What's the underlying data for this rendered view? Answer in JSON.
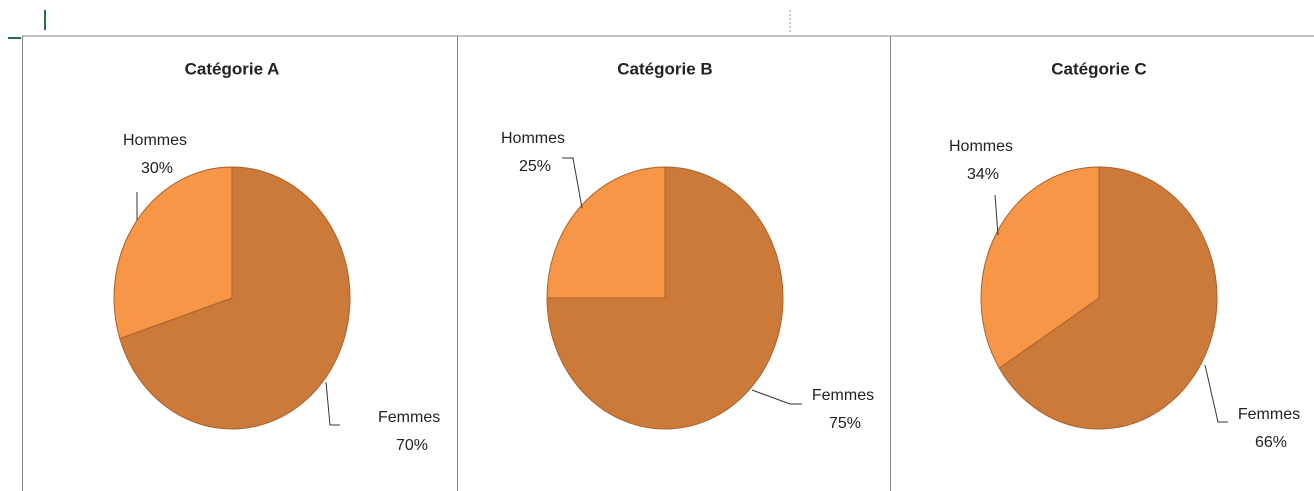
{
  "chart_data": [
    {
      "type": "pie",
      "title": "Catégorie A",
      "categories": [
        "Femmes",
        "Hommes"
      ],
      "values": [
        70,
        30
      ],
      "value_labels": [
        "70%",
        "30%"
      ],
      "colors": [
        "#cc7a39",
        "#f79646"
      ]
    },
    {
      "type": "pie",
      "title": "Catégorie B",
      "categories": [
        "Femmes",
        "Hommes"
      ],
      "values": [
        75,
        25
      ],
      "value_labels": [
        "75%",
        "25%"
      ],
      "colors": [
        "#cc7a39",
        "#f79646"
      ]
    },
    {
      "type": "pie",
      "title": "Catégorie C",
      "categories": [
        "Femmes",
        "Hommes"
      ],
      "values": [
        66,
        34
      ],
      "value_labels": [
        "66%",
        "34%"
      ],
      "colors": [
        "#cc7a39",
        "#f79646"
      ]
    }
  ]
}
